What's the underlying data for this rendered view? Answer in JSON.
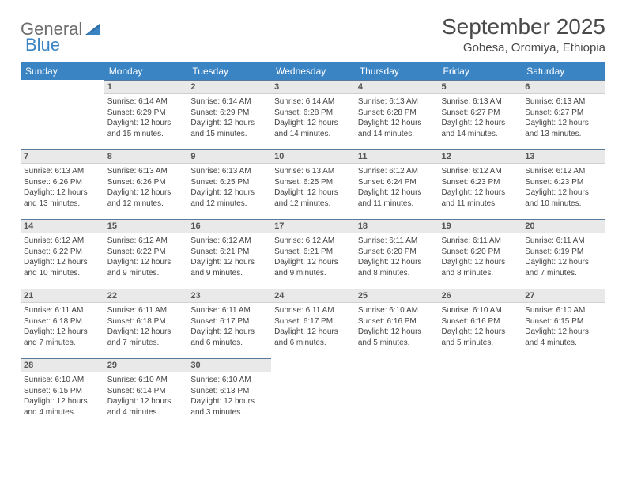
{
  "brand": {
    "word1": "General",
    "word2": "Blue"
  },
  "title": "September 2025",
  "location": "Gobesa, Oromiya, Ethiopia",
  "colors": {
    "header_bg": "#3b84c4",
    "header_text": "#ffffff",
    "daynum_bg": "#e9e9e9",
    "daynum_border_top": "#5a7a9a",
    "text": "#444444",
    "logo_gray": "#6e6e6e",
    "logo_blue": "#3b84c4",
    "page_bg": "#ffffff"
  },
  "fonts": {
    "title_pt": 28,
    "location_pt": 15,
    "header_pt": 12,
    "daynum_pt": 11,
    "body_pt": 10
  },
  "weekdays": [
    "Sunday",
    "Monday",
    "Tuesday",
    "Wednesday",
    "Thursday",
    "Friday",
    "Saturday"
  ],
  "weeks": [
    [
      {
        "n": "",
        "sunrise": "",
        "sunset": "",
        "daylight": "",
        "empty": true
      },
      {
        "n": "1",
        "sunrise": "Sunrise: 6:14 AM",
        "sunset": "Sunset: 6:29 PM",
        "daylight": "Daylight: 12 hours and 15 minutes."
      },
      {
        "n": "2",
        "sunrise": "Sunrise: 6:14 AM",
        "sunset": "Sunset: 6:29 PM",
        "daylight": "Daylight: 12 hours and 15 minutes."
      },
      {
        "n": "3",
        "sunrise": "Sunrise: 6:14 AM",
        "sunset": "Sunset: 6:28 PM",
        "daylight": "Daylight: 12 hours and 14 minutes."
      },
      {
        "n": "4",
        "sunrise": "Sunrise: 6:13 AM",
        "sunset": "Sunset: 6:28 PM",
        "daylight": "Daylight: 12 hours and 14 minutes."
      },
      {
        "n": "5",
        "sunrise": "Sunrise: 6:13 AM",
        "sunset": "Sunset: 6:27 PM",
        "daylight": "Daylight: 12 hours and 14 minutes."
      },
      {
        "n": "6",
        "sunrise": "Sunrise: 6:13 AM",
        "sunset": "Sunset: 6:27 PM",
        "daylight": "Daylight: 12 hours and 13 minutes."
      }
    ],
    [
      {
        "n": "7",
        "sunrise": "Sunrise: 6:13 AM",
        "sunset": "Sunset: 6:26 PM",
        "daylight": "Daylight: 12 hours and 13 minutes."
      },
      {
        "n": "8",
        "sunrise": "Sunrise: 6:13 AM",
        "sunset": "Sunset: 6:26 PM",
        "daylight": "Daylight: 12 hours and 12 minutes."
      },
      {
        "n": "9",
        "sunrise": "Sunrise: 6:13 AM",
        "sunset": "Sunset: 6:25 PM",
        "daylight": "Daylight: 12 hours and 12 minutes."
      },
      {
        "n": "10",
        "sunrise": "Sunrise: 6:13 AM",
        "sunset": "Sunset: 6:25 PM",
        "daylight": "Daylight: 12 hours and 12 minutes."
      },
      {
        "n": "11",
        "sunrise": "Sunrise: 6:12 AM",
        "sunset": "Sunset: 6:24 PM",
        "daylight": "Daylight: 12 hours and 11 minutes."
      },
      {
        "n": "12",
        "sunrise": "Sunrise: 6:12 AM",
        "sunset": "Sunset: 6:23 PM",
        "daylight": "Daylight: 12 hours and 11 minutes."
      },
      {
        "n": "13",
        "sunrise": "Sunrise: 6:12 AM",
        "sunset": "Sunset: 6:23 PM",
        "daylight": "Daylight: 12 hours and 10 minutes."
      }
    ],
    [
      {
        "n": "14",
        "sunrise": "Sunrise: 6:12 AM",
        "sunset": "Sunset: 6:22 PM",
        "daylight": "Daylight: 12 hours and 10 minutes."
      },
      {
        "n": "15",
        "sunrise": "Sunrise: 6:12 AM",
        "sunset": "Sunset: 6:22 PM",
        "daylight": "Daylight: 12 hours and 9 minutes."
      },
      {
        "n": "16",
        "sunrise": "Sunrise: 6:12 AM",
        "sunset": "Sunset: 6:21 PM",
        "daylight": "Daylight: 12 hours and 9 minutes."
      },
      {
        "n": "17",
        "sunrise": "Sunrise: 6:12 AM",
        "sunset": "Sunset: 6:21 PM",
        "daylight": "Daylight: 12 hours and 9 minutes."
      },
      {
        "n": "18",
        "sunrise": "Sunrise: 6:11 AM",
        "sunset": "Sunset: 6:20 PM",
        "daylight": "Daylight: 12 hours and 8 minutes."
      },
      {
        "n": "19",
        "sunrise": "Sunrise: 6:11 AM",
        "sunset": "Sunset: 6:20 PM",
        "daylight": "Daylight: 12 hours and 8 minutes."
      },
      {
        "n": "20",
        "sunrise": "Sunrise: 6:11 AM",
        "sunset": "Sunset: 6:19 PM",
        "daylight": "Daylight: 12 hours and 7 minutes."
      }
    ],
    [
      {
        "n": "21",
        "sunrise": "Sunrise: 6:11 AM",
        "sunset": "Sunset: 6:18 PM",
        "daylight": "Daylight: 12 hours and 7 minutes."
      },
      {
        "n": "22",
        "sunrise": "Sunrise: 6:11 AM",
        "sunset": "Sunset: 6:18 PM",
        "daylight": "Daylight: 12 hours and 7 minutes."
      },
      {
        "n": "23",
        "sunrise": "Sunrise: 6:11 AM",
        "sunset": "Sunset: 6:17 PM",
        "daylight": "Daylight: 12 hours and 6 minutes."
      },
      {
        "n": "24",
        "sunrise": "Sunrise: 6:11 AM",
        "sunset": "Sunset: 6:17 PM",
        "daylight": "Daylight: 12 hours and 6 minutes."
      },
      {
        "n": "25",
        "sunrise": "Sunrise: 6:10 AM",
        "sunset": "Sunset: 6:16 PM",
        "daylight": "Daylight: 12 hours and 5 minutes."
      },
      {
        "n": "26",
        "sunrise": "Sunrise: 6:10 AM",
        "sunset": "Sunset: 6:16 PM",
        "daylight": "Daylight: 12 hours and 5 minutes."
      },
      {
        "n": "27",
        "sunrise": "Sunrise: 6:10 AM",
        "sunset": "Sunset: 6:15 PM",
        "daylight": "Daylight: 12 hours and 4 minutes."
      }
    ],
    [
      {
        "n": "28",
        "sunrise": "Sunrise: 6:10 AM",
        "sunset": "Sunset: 6:15 PM",
        "daylight": "Daylight: 12 hours and 4 minutes."
      },
      {
        "n": "29",
        "sunrise": "Sunrise: 6:10 AM",
        "sunset": "Sunset: 6:14 PM",
        "daylight": "Daylight: 12 hours and 4 minutes."
      },
      {
        "n": "30",
        "sunrise": "Sunrise: 6:10 AM",
        "sunset": "Sunset: 6:13 PM",
        "daylight": "Daylight: 12 hours and 3 minutes."
      },
      {
        "n": "",
        "sunrise": "",
        "sunset": "",
        "daylight": "",
        "empty": true
      },
      {
        "n": "",
        "sunrise": "",
        "sunset": "",
        "daylight": "",
        "empty": true
      },
      {
        "n": "",
        "sunrise": "",
        "sunset": "",
        "daylight": "",
        "empty": true
      },
      {
        "n": "",
        "sunrise": "",
        "sunset": "",
        "daylight": "",
        "empty": true
      }
    ]
  ]
}
